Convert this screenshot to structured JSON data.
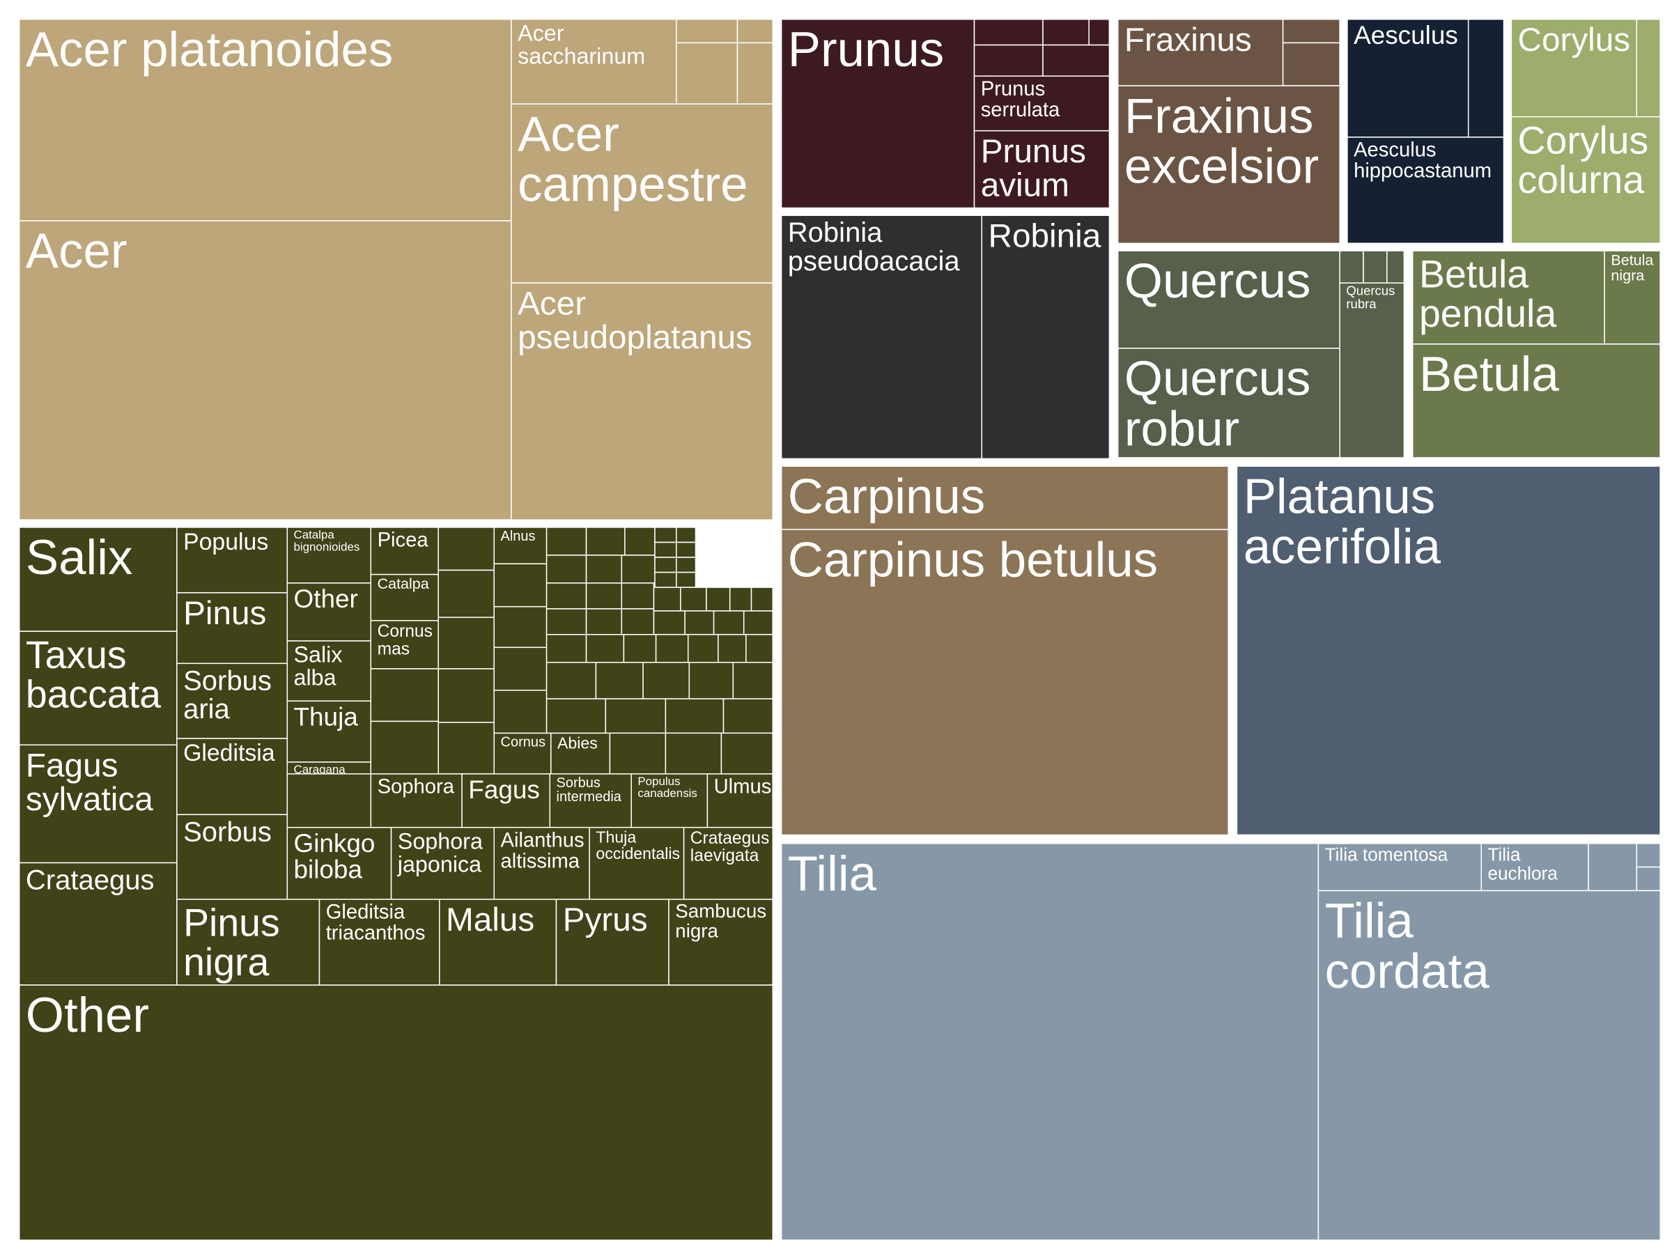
{
  "chart_data": {
    "type": "treemap",
    "title": "",
    "groups": [
      {
        "name": "Acer",
        "color": "#bca67a",
        "labels": [
          "Acer platanoides",
          "Acer",
          "Acer saccharinum",
          "Acer campestre",
          "Acer pseudoplatanus"
        ]
      },
      {
        "name": "Prunus",
        "color": "#3d1a22",
        "labels": [
          "Prunus",
          "Prunus serrulata",
          "Prunus avium"
        ]
      },
      {
        "name": "Fraxinus",
        "color": "#6c5444",
        "labels": [
          "Fraxinus",
          "Fraxinus excelsior"
        ]
      },
      {
        "name": "Aesculus",
        "color": "#152033",
        "labels": [
          "Aesculus",
          "Aesculus hippocastanum"
        ]
      },
      {
        "name": "Corylus",
        "color": "#9cad6c",
        "labels": [
          "Corylus",
          "Corylus colurna"
        ]
      },
      {
        "name": "Robinia",
        "color": "#2f2f2f",
        "labels": [
          "Robinia pseudoacacia",
          "Robinia"
        ]
      },
      {
        "name": "Quercus",
        "color": "#56604a",
        "labels": [
          "Quercus",
          "Quercus rubra",
          "Quercus robur"
        ]
      },
      {
        "name": "Betula",
        "color": "#6b7a4b",
        "labels": [
          "Betula pendula",
          "Betula nigra",
          "Betula"
        ]
      },
      {
        "name": "Carpinus",
        "color": "#8b7556",
        "labels": [
          "Carpinus",
          "Carpinus betulus"
        ]
      },
      {
        "name": "Platanus",
        "color": "#4f5e70",
        "labels": [
          "Platanus acerifolia"
        ]
      },
      {
        "name": "Tilia",
        "color": "#8698a8",
        "labels": [
          "Tilia",
          "Tilia tomentosa",
          "Tilia euchlora",
          "Tilia cordata"
        ]
      },
      {
        "name": "Other",
        "color": "#404218",
        "labels": [
          "Salix",
          "Taxus baccata",
          "Fagus sylvatica",
          "Crataegus",
          "Other",
          "Populus",
          "Pinus",
          "Sorbus aria",
          "Gleditsia",
          "Sorbus",
          "Pinus nigra",
          "Catalpa bignonioides",
          "Other",
          "Salix alba",
          "Thuja",
          "Caragana arborescens",
          "Ginkgo biloba",
          "Gleditsia triacanthos",
          "Picea",
          "Catalpa",
          "Cornus mas",
          "Sophora",
          "Sophora japonica",
          "Malus",
          "Alnus",
          "Cornus",
          "Abies",
          "Fagus",
          "Sorbus intermedia",
          "Populus canadensis",
          "Ulmus",
          "Ailanthus altissima",
          "Thuja occidentalis",
          "Crataegus laevigata",
          "Pyrus",
          "Sambucus nigra"
        ]
      }
    ]
  }
}
